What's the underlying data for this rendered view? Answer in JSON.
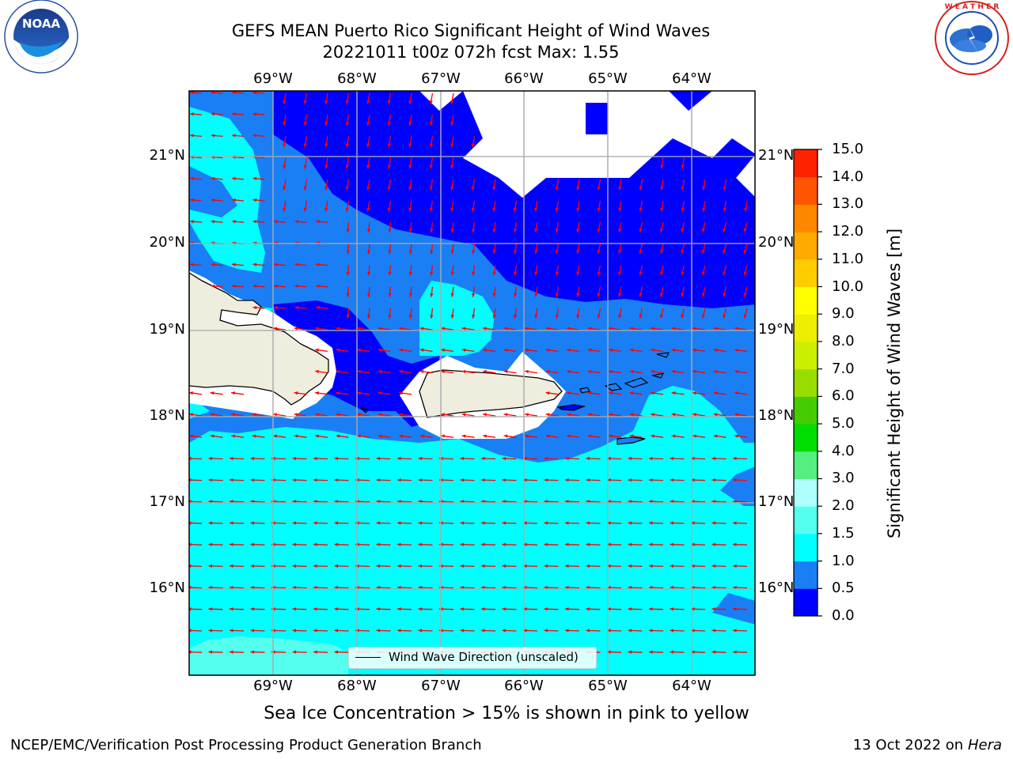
{
  "title_line1": "GEFS MEAN Puerto Rico Significant Height of Wind Waves",
  "title_line2": "20221011 t00z 072h fcst   Max: 1.55",
  "logos": {
    "left": {
      "name": "noaa-logo",
      "text": "NOAA",
      "ring_text": "NATIONAL OCEANIC AND ATMOSPHERIC ADMINISTRATION · U.S. DEPARTMENT OF COMMERCE"
    },
    "right": {
      "name": "nws-logo",
      "ring_text": "NATIONAL WEATHER SERVICE"
    }
  },
  "map": {
    "lon_labels": [
      "69°W",
      "68°W",
      "67°W",
      "66°W",
      "65°W",
      "64°W"
    ],
    "lat_labels": [
      "21°N",
      "20°N",
      "19°N",
      "18°N",
      "17°N",
      "16°N"
    ],
    "legend_label": "Wind Wave Direction (unscaled)",
    "arrow_color": "#ff0000",
    "land_color": "#efedde",
    "no_data_color": "#ffffff"
  },
  "colorbar": {
    "label": "Significant Height of Wind Waves [m]",
    "ticks": [
      "0.0",
      "0.5",
      "1.0",
      "1.5",
      "2.0",
      "3.0",
      "4.0",
      "5.0",
      "6.0",
      "7.0",
      "8.0",
      "9.0",
      "10.0",
      "11.0",
      "12.0",
      "13.0",
      "14.0",
      "15.0"
    ],
    "colors": [
      "#0000ff",
      "#1a7ff5",
      "#00ffff",
      "#55ffee",
      "#b0ffff",
      "#55ee80",
      "#00dd00",
      "#44cc00",
      "#99dd00",
      "#ccee00",
      "#eeee00",
      "#ffff00",
      "#ffcc00",
      "#ffaa00",
      "#ff8800",
      "#ff5500",
      "#ff2200"
    ]
  },
  "sea_ice_note": "Sea Ice Concentration > 15% is shown in pink to yellow",
  "footer": {
    "left": "NCEP/EMC/Verification Post Processing Product Generation Branch",
    "right_prefix": "13 Oct 2022 on ",
    "right_host": "Hera"
  }
}
